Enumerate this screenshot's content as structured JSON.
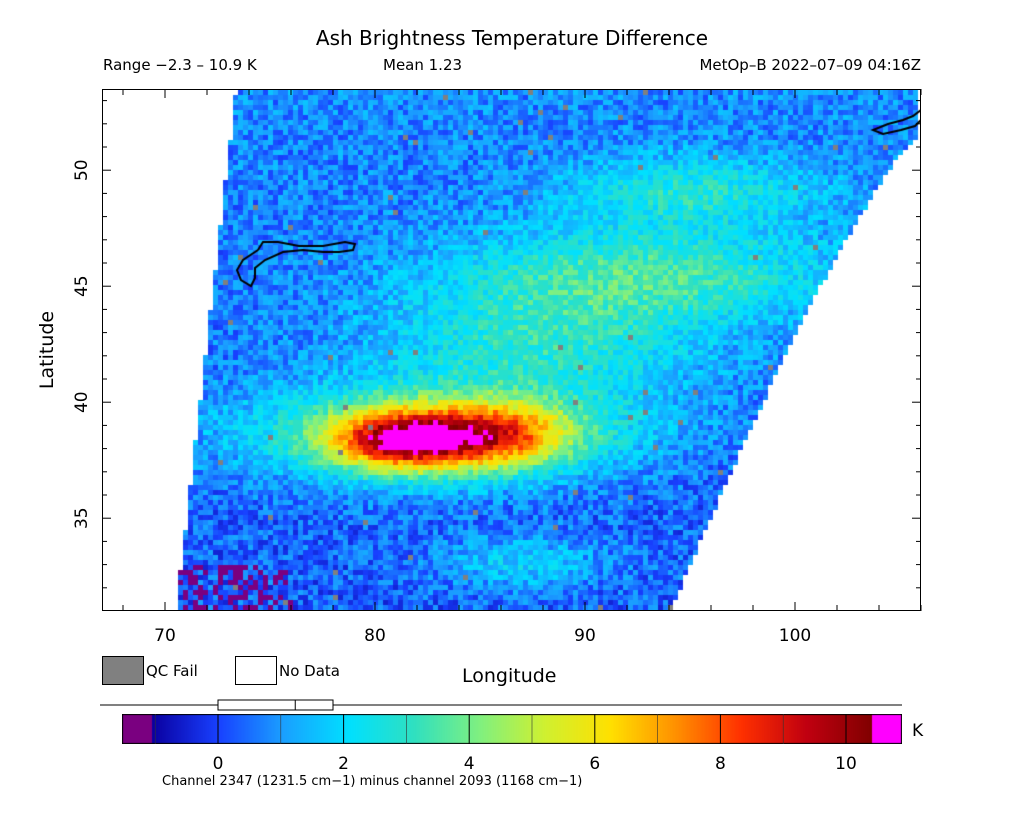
{
  "chart_data": {
    "type": "heatmap",
    "title": "Ash Brightness Temperature Difference",
    "range_text": "Range −2.3 – 10.9 K",
    "mean_text": "Mean 1.23",
    "satellite_text": "MetOp–B 2022–07–09 04:16Z",
    "xlabel": "Longitude",
    "ylabel": "Latitude",
    "xlim": [
      67,
      106
    ],
    "ylim": [
      31,
      53.5
    ],
    "x_ticks": [
      70,
      80,
      90,
      100
    ],
    "y_ticks": [
      35,
      40,
      45,
      50
    ],
    "value_range": [
      -2.3,
      10.9
    ],
    "mean": 1.23,
    "colorbar": {
      "ticks": [
        0,
        2,
        4,
        6,
        8,
        10
      ],
      "unit": "K",
      "min": -1.5,
      "max": 10.5,
      "colors": [
        "#7a0080",
        "#0a00a0",
        "#1840ff",
        "#1aa0ff",
        "#00e0ff",
        "#30e0c0",
        "#80f080",
        "#d0f030",
        "#ffe000",
        "#ff9000",
        "#ff3000",
        "#c00010",
        "#800000",
        "#ff00ff"
      ]
    },
    "ash_plume_region": "lon 77–90, lat 36.5–40"
  },
  "legend": {
    "qc_fail": "QC Fail",
    "no_data": "No Data",
    "qc_fail_color": "#808080"
  },
  "footnote": "Channel 2347 (1231.5 cm−1) minus channel 2093 (1168 cm−1)"
}
